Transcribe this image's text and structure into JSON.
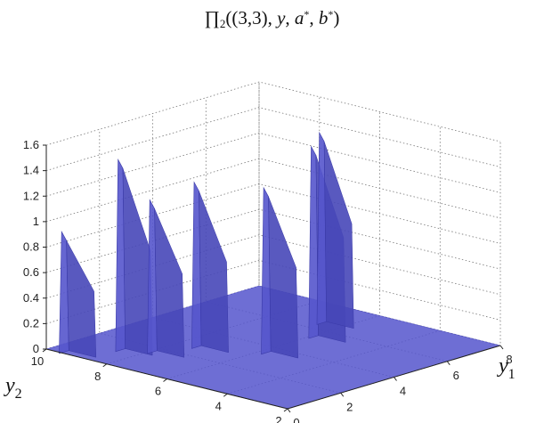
{
  "chart_data": {
    "type": "surface",
    "title": {
      "prefix": "∏",
      "subscript": "2",
      "middle": "((3,3), ",
      "y": "y",
      "sep1": ", ",
      "a": "a",
      "star1": "*",
      "sep2": ", ",
      "b": "b",
      "star2": "*",
      "suffix": ")"
    },
    "xlabel": {
      "base": "y",
      "sub": "1"
    },
    "ylabel": {
      "base": "y",
      "sub": "2"
    },
    "xlim": [
      0,
      8
    ],
    "ylim": [
      2,
      10
    ],
    "zlim": [
      0,
      1.6
    ],
    "x_ticks": [
      "0",
      "2",
      "4",
      "6",
      "8"
    ],
    "y_ticks": [
      "2",
      "4",
      "6",
      "8",
      "10"
    ],
    "z_ticks": [
      "0",
      "0.2",
      "0.4",
      "0.6",
      "0.8",
      "1",
      "1.2",
      "1.4",
      "1.6"
    ],
    "grid": true,
    "surface_color": "#5555cc",
    "base_plane_value": 0,
    "spikes": [
      {
        "x": 0.1,
        "y": 9.5,
        "z": 0.95
      },
      {
        "x": 1.2,
        "y": 8.6,
        "z": 1.5
      },
      {
        "x": 1.6,
        "y": 7.9,
        "z": 1.2
      },
      {
        "x": 2.7,
        "y": 7.4,
        "z": 1.3
      },
      {
        "x": 3.5,
        "y": 5.8,
        "z": 1.3
      },
      {
        "x": 5.4,
        "y": 5.9,
        "z": 1.5
      },
      {
        "x": 6.5,
        "y": 6.6,
        "z": 1.5
      }
    ]
  }
}
